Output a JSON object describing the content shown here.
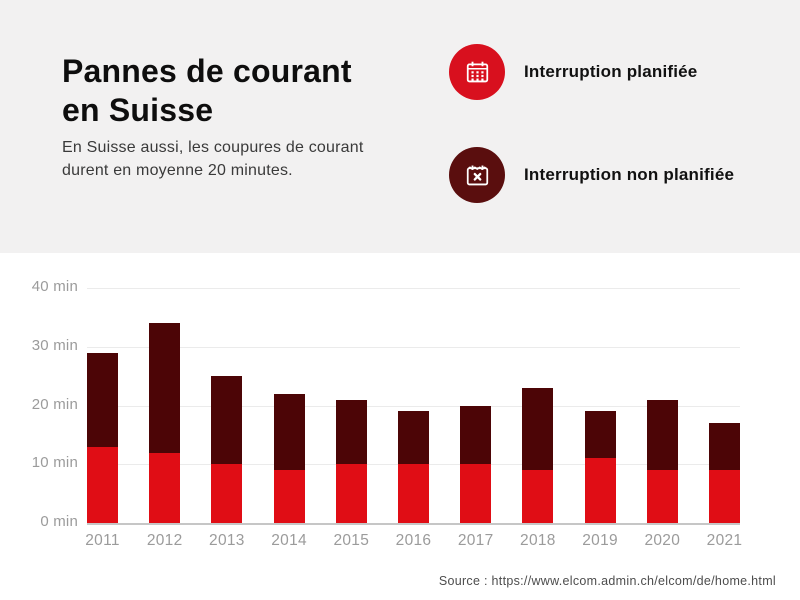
{
  "page": {
    "background": "#ffffff"
  },
  "header": {
    "background": "#f2f1f1",
    "title_line1": "Pannes de courant",
    "title_line2": "en Suisse",
    "subtitle_line1": "En Suisse aussi, les coupures de courant",
    "subtitle_line2": "durent en moyenne 20 minutes.",
    "legend": [
      {
        "label": "Interruption planifiée",
        "icon": "calendar-grid-icon",
        "circle_color": "#d8101e",
        "icon_color": "#ffffff"
      },
      {
        "label": "Interruption non planifiée",
        "icon": "calendar-x-icon",
        "circle_color": "#5a0e0e",
        "icon_color": "#ffffff"
      }
    ]
  },
  "chart_data": {
    "type": "bar",
    "stacked": true,
    "title": "Pannes de courant en Suisse",
    "subtitle": "En Suisse aussi, les coupures de courant durent en moyenne 20 minutes.",
    "categories": [
      "2011",
      "2012",
      "2013",
      "2014",
      "2015",
      "2016",
      "2017",
      "2018",
      "2019",
      "2020",
      "2021"
    ],
    "series": [
      {
        "name": "Interruption planifiée",
        "color": "#e00d15",
        "values": [
          13,
          12,
          10,
          9,
          10,
          10,
          10,
          9,
          11,
          9,
          9
        ]
      },
      {
        "name": "Interruption non planifiée",
        "color": "#4c0506",
        "values": [
          16,
          22,
          15,
          13,
          11,
          9,
          10,
          14,
          8,
          12,
          8
        ]
      }
    ],
    "totals": [
      29,
      34,
      25,
      22,
      21,
      19,
      20,
      23,
      19,
      21,
      17
    ],
    "unit": "min",
    "ylim": [
      0,
      40
    ],
    "yticks": [
      {
        "value": 0,
        "label": "0 min"
      },
      {
        "value": 10,
        "label": "10 min"
      },
      {
        "value": 20,
        "label": "20 min"
      },
      {
        "value": 30,
        "label": "30 min"
      },
      {
        "value": 40,
        "label": "40 min"
      }
    ],
    "grid": true,
    "legend_position": "top-right",
    "gridline_color": "#ebebeb",
    "axisline_color": "#c6c6c6",
    "tick_text_color": "#9b9b9b"
  },
  "footer": {
    "source": "Source : https://www.elcom.admin.ch/elcom/de/home.html"
  }
}
